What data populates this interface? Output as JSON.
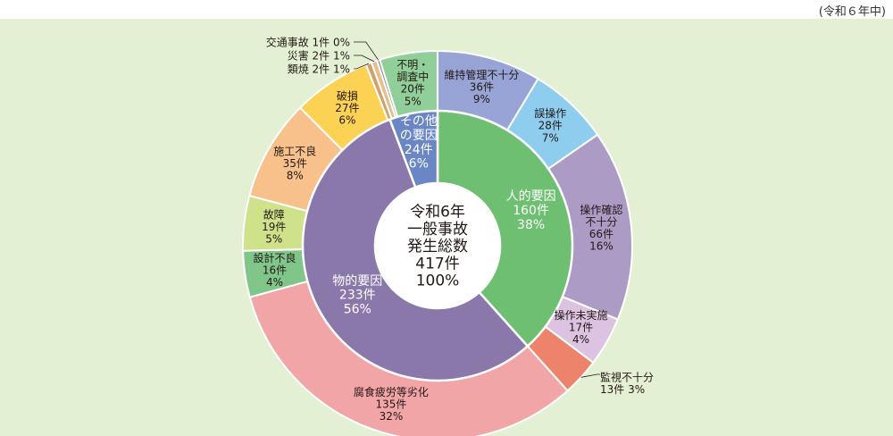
{
  "period_note": "(令和６年中)",
  "chart_data": {
    "type": "pie",
    "center_label": [
      "令和6年",
      "一般事故",
      "発生総数",
      "417件",
      "100%"
    ],
    "total": {
      "name": "一般事故発生総数",
      "count": 417,
      "percent": 100
    },
    "inner_ring": [
      {
        "name": "人的要因",
        "count": 160,
        "percent": 38,
        "color": "#6fbf73",
        "lines": [
          "人的要因",
          "160件",
          "38%"
        ]
      },
      {
        "name": "物的要因",
        "count": 233,
        "percent": 56,
        "color": "#8a78ab",
        "lines": [
          "物的要因",
          "233件",
          "56%"
        ]
      },
      {
        "name": "その他の要因",
        "count": 24,
        "percent": 6,
        "color": "#6b86c4",
        "lines": [
          "その他",
          "の要因",
          "24件",
          "6%"
        ]
      }
    ],
    "outer_ring": [
      {
        "name": "維持管理不十分",
        "count": 36,
        "percent": 9,
        "color": "#98a3d6",
        "lines": [
          "維持管理不十分",
          "36件",
          "9%"
        ]
      },
      {
        "name": "誤操作",
        "count": 28,
        "percent": 7,
        "color": "#8fcdef",
        "lines": [
          "誤操作",
          "28件",
          "7%"
        ]
      },
      {
        "name": "操作確認不十分",
        "count": 66,
        "percent": 16,
        "color": "#ac9bc4",
        "lines": [
          "操作確認",
          "不十分",
          "66件",
          "16%"
        ]
      },
      {
        "name": "操作未実施",
        "count": 17,
        "percent": 4,
        "color": "#dcc3e2",
        "lines": [
          "操作未実施",
          "17件",
          "4%"
        ]
      },
      {
        "name": "監視不十分",
        "count": 13,
        "percent": 3,
        "color": "#ee836c",
        "lines": [
          "監視不十分",
          "13件 3%"
        ],
        "callout": true
      },
      {
        "name": "腐食疲労等劣化",
        "count": 135,
        "percent": 32,
        "color": "#f2a5a7",
        "lines": [
          "腐食疲労等劣化",
          "135件",
          "32%"
        ]
      },
      {
        "name": "設計不良",
        "count": 16,
        "percent": 4,
        "color": "#80c58a",
        "lines": [
          "設計不良",
          "16件",
          "4%"
        ]
      },
      {
        "name": "故障",
        "count": 19,
        "percent": 5,
        "color": "#cfe28a",
        "lines": [
          "故障",
          "19件",
          "5%"
        ]
      },
      {
        "name": "施工不良",
        "count": 35,
        "percent": 8,
        "color": "#f8c18c",
        "lines": [
          "施工不良",
          "35件",
          "8%"
        ]
      },
      {
        "name": "破損",
        "count": 27,
        "percent": 6,
        "color": "#fbd253",
        "lines": [
          "破損",
          "27件",
          "6%"
        ]
      },
      {
        "name": "類焼",
        "count": 2,
        "percent": 1,
        "color": "#cfa06a",
        "lines": [
          "類焼 2件 1%"
        ],
        "callout": true
      },
      {
        "name": "災害",
        "count": 2,
        "percent": 1,
        "color": "#e6bd8c",
        "lines": [
          "災害 2件 1%"
        ],
        "callout": true
      },
      {
        "name": "交通事故",
        "count": 1,
        "percent": 0,
        "color": "#8b8080",
        "lines": [
          "交通事故 1件 0%"
        ],
        "callout": true
      },
      {
        "name": "不明・調査中",
        "count": 20,
        "percent": 5,
        "color": "#90ce9a",
        "lines": [
          "不明・",
          "調査中",
          "20件",
          "5%"
        ]
      }
    ]
  }
}
